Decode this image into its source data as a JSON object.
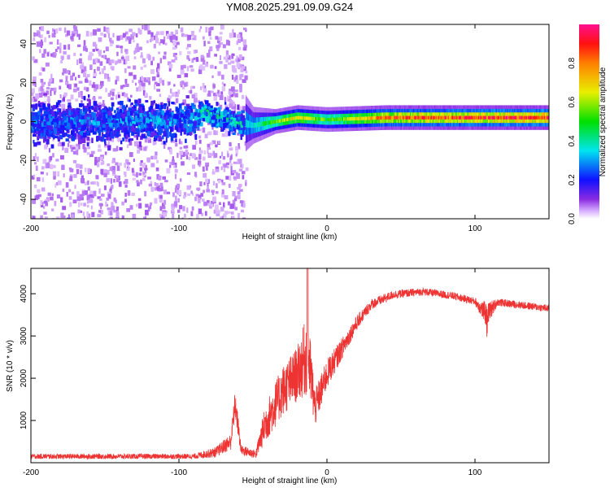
{
  "chart_data": [
    {
      "type": "heatmap",
      "title": "YM08.2025.291.09.09.G24",
      "xlabel": "Height of straight line (km)",
      "ylabel": "Frequency (Hz)",
      "xlim": [
        -200,
        150
      ],
      "ylim": [
        -50,
        50
      ],
      "xticks": [
        -200,
        -100,
        0,
        100
      ],
      "yticks": [
        -40,
        -20,
        0,
        20,
        40
      ],
      "colorbar": {
        "label": "Normalized spectral amplitude",
        "range": [
          0,
          1
        ],
        "ticks": [
          "0.0",
          "0.2",
          "0.4",
          "0.6",
          "0.8"
        ],
        "colormap": "rainbow"
      },
      "ridge": [
        {
          "x": -200,
          "freq": 0,
          "amp": 0.25,
          "spread": 10
        },
        {
          "x": -90,
          "freq": 2,
          "amp": 0.3,
          "spread": 8
        },
        {
          "x": -85,
          "freq": 6,
          "amp": 0.45,
          "spread": 4
        },
        {
          "x": -60,
          "freq": 0,
          "amp": 0.35,
          "spread": 6
        },
        {
          "x": -50,
          "freq": -2,
          "amp": 0.35,
          "spread": 3
        },
        {
          "x": -35,
          "freq": 0,
          "amp": 0.55,
          "spread": 2
        },
        {
          "x": -20,
          "freq": 2,
          "amp": 0.7,
          "spread": 2
        },
        {
          "x": 0,
          "freq": 1,
          "amp": 0.5,
          "spread": 2
        },
        {
          "x": 40,
          "freq": 2,
          "amp": 0.85,
          "spread": 2
        },
        {
          "x": 150,
          "freq": 2,
          "amp": 0.95,
          "spread": 2
        }
      ],
      "scatter_noise_until_x": -55
    },
    {
      "type": "line",
      "xlabel": "Height of straight line (km)",
      "ylabel": "SNR (10 * v/v)",
      "xlim": [
        -200,
        150
      ],
      "ylim": [
        0,
        4600
      ],
      "xticks": [
        -200,
        -100,
        0,
        100
      ],
      "yticks": [
        1000,
        2000,
        3000,
        4000
      ],
      "color": "#ee3333",
      "envelope": [
        {
          "x": -200,
          "mean": 150,
          "noise": 120
        },
        {
          "x": -90,
          "mean": 150,
          "noise": 120
        },
        {
          "x": -75,
          "mean": 250,
          "noise": 250
        },
        {
          "x": -65,
          "mean": 500,
          "noise": 400
        },
        {
          "x": -62,
          "mean": 1400,
          "noise": 700
        },
        {
          "x": -58,
          "mean": 300,
          "noise": 250
        },
        {
          "x": -48,
          "mean": 200,
          "noise": 200
        },
        {
          "x": -42,
          "mean": 900,
          "noise": 900
        },
        {
          "x": -30,
          "mean": 1700,
          "noise": 1200
        },
        {
          "x": -20,
          "mean": 2100,
          "noise": 1300
        },
        {
          "x": -13,
          "mean": 2600,
          "noise": 2000
        },
        {
          "x": -8,
          "mean": 1300,
          "noise": 900
        },
        {
          "x": 0,
          "mean": 2100,
          "noise": 700
        },
        {
          "x": 10,
          "mean": 2700,
          "noise": 500
        },
        {
          "x": 20,
          "mean": 3300,
          "noise": 350
        },
        {
          "x": 30,
          "mean": 3750,
          "noise": 250
        },
        {
          "x": 45,
          "mean": 3980,
          "noise": 200
        },
        {
          "x": 65,
          "mean": 4050,
          "noise": 180
        },
        {
          "x": 85,
          "mean": 3950,
          "noise": 180
        },
        {
          "x": 100,
          "mean": 3820,
          "noise": 180
        },
        {
          "x": 108,
          "mean": 3500,
          "noise": 600
        },
        {
          "x": 115,
          "mean": 3800,
          "noise": 180
        },
        {
          "x": 150,
          "mean": 3650,
          "noise": 180
        }
      ]
    }
  ]
}
